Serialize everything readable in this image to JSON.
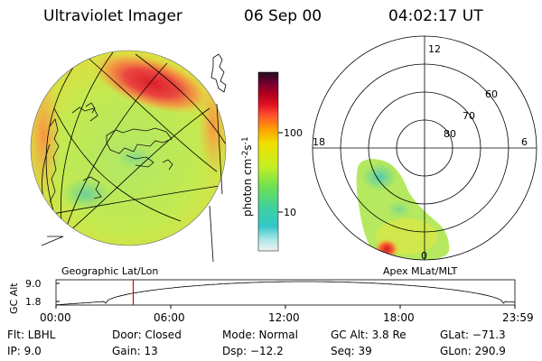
{
  "header": {
    "title": "Ultraviolet Imager",
    "date": "06 Sep 00",
    "time": "04:02:17 UT"
  },
  "colorbar": {
    "label_main": "photon cm",
    "label_sup1": "-2",
    "label_s": "s",
    "label_sup2": "-1",
    "ticks": [
      "100",
      "10"
    ]
  },
  "geo_panel": {
    "caption": "Geographic Lat/Lon"
  },
  "polar_panel": {
    "caption": "Apex MLat/MLT",
    "mlt_labels": [
      "12",
      "18",
      "6",
      "0"
    ],
    "lat_labels": [
      "60",
      "70",
      "80"
    ]
  },
  "altitude_plot": {
    "ylabel": "GC Alt",
    "yticks": [
      "9.0",
      "1.8"
    ],
    "xticks": [
      "00:00",
      "06:00",
      "12:00",
      "18:00",
      "23:59"
    ],
    "marker_hour": 4.04,
    "marker_color": "#dd0000"
  },
  "footer": {
    "filter": "Flt: LBHL",
    "ip": "IP:  9.0",
    "door": "Door: Closed",
    "gain": "Gain: 13",
    "mode": "Mode: Normal",
    "dsp": "Dsp:  −12.2",
    "gc_alt": "GC Alt: 3.8 Re",
    "seq": "Seq: 39",
    "glat": "GLat: −71.3",
    "glon": "GLon: 290.9"
  }
}
